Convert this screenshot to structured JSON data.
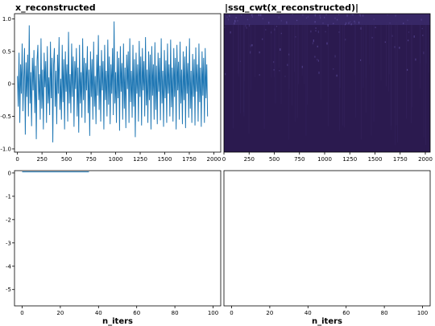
{
  "chart_data": [
    {
      "type": "line",
      "title": "x_reconstructed",
      "xlim": [
        -30,
        2070
      ],
      "ylim": [
        -1.05,
        1.08
      ],
      "xticks": [
        0,
        250,
        500,
        750,
        1000,
        1250,
        1500,
        1750,
        2000
      ],
      "xtick_labels": [
        "0",
        "250",
        "500",
        "750",
        "1000",
        "1250",
        "1500",
        "1750",
        "2000"
      ],
      "yticks": [
        1.0,
        0.5,
        0,
        -0.5,
        -1.0
      ],
      "ytick_labels": [
        "1.0",
        "0.5",
        "0",
        "-0.5",
        "-1.0"
      ],
      "n_points": 2048,
      "y_range_observed": [
        -0.95,
        0.97
      ],
      "series": [
        {
          "color": "#1f77b4",
          "x_step": 8,
          "values": [
            0.12,
            -0.35,
            0.48,
            -0.6,
            0.3,
            -0.15,
            0.62,
            -0.42,
            0.05,
            0.55,
            -0.78,
            0.33,
            -0.2,
            0.45,
            -0.5,
            0.9,
            -0.3,
            0.18,
            -0.65,
            0.4,
            -0.1,
            0.52,
            -0.45,
            0.28,
            -0.85,
            0.36,
            0.6,
            -0.25,
            0.15,
            -0.55,
            0.7,
            -0.38,
            0.22,
            -0.7,
            0.48,
            -0.05,
            0.35,
            -0.6,
            0.58,
            -0.3,
            0.1,
            -0.48,
            0.65,
            -0.22,
            0.4,
            -0.9,
            0.3,
            0.55,
            -0.35,
            0.2,
            -0.62,
            0.45,
            -0.15,
            0.72,
            -0.4,
            0.08,
            -0.55,
            0.6,
            -0.28,
            0.38,
            -0.7,
            0.5,
            -0.12,
            0.3,
            -0.58,
            0.8,
            -0.3,
            0.15,
            -0.45,
            0.62,
            -0.2,
            0.42,
            -0.66,
            0.35,
            -0.08,
            0.55,
            -0.5,
            0.25,
            -0.75,
            0.6,
            -0.3,
            0.18,
            -0.52,
            0.7,
            -0.25,
            0.4,
            -0.6,
            0.32,
            -0.1,
            0.58,
            -0.45,
            0.22,
            -0.8,
            0.5,
            -0.2,
            0.38,
            -0.55,
            0.65,
            -0.35,
            0.12,
            -0.62,
            0.45,
            -0.18,
            0.75,
            -0.4,
            0.28,
            -0.58,
            0.52,
            -0.1,
            0.35,
            -0.7,
            0.6,
            -0.25,
            0.2,
            -0.5,
            0.68,
            -0.32,
            0.42,
            -0.62,
            0.3,
            -0.15,
            0.55,
            -0.48,
            0.96,
            -0.3,
            0.18,
            -0.6,
            0.5,
            -0.22,
            0.4,
            -0.72,
            0.58,
            -0.12,
            0.32,
            -0.55,
            0.62,
            -0.38,
            0.25,
            -0.68,
            0.45,
            -0.08,
            0.5,
            -0.6,
            0.7,
            -0.28,
            0.2,
            -0.52,
            0.6,
            -0.35,
            0.38,
            -0.82,
            0.48,
            -0.15,
            0.3,
            -0.58,
            0.66,
            -0.2,
            0.42,
            -0.64,
            0.55,
            -0.1,
            0.35,
            -0.5,
            0.72,
            -0.33,
            0.22,
            -0.6,
            0.5,
            -0.25,
            0.45,
            -0.7,
            0.58,
            -0.18,
            0.3,
            -0.55,
            0.64,
            -0.4,
            0.28,
            -0.62,
            0.48,
            -0.12,
            0.4,
            -0.56,
            0.7,
            -0.3,
            0.2,
            -0.66,
            0.52,
            -0.22,
            0.36,
            -0.6,
            0.62,
            -0.15,
            0.3,
            -0.5,
            0.68,
            -0.36,
            0.25,
            -0.58,
            0.55,
            -0.2,
            0.4,
            -0.7,
            0.6,
            -0.1,
            0.34,
            -0.55,
            0.65,
            -0.3,
            0.22,
            -0.62,
            0.5,
            -0.25,
            0.42,
            -0.68,
            0.58,
            -0.15,
            0.32,
            -0.52,
            0.7,
            -0.38,
            0.2,
            -0.6,
            0.46,
            -0.2,
            0.38,
            -0.64,
            0.56,
            -0.12,
            0.3,
            -0.58,
            0.62,
            -0.28,
            0.25,
            -0.66,
            0.5,
            -0.18,
            0.4,
            -0.6,
            0.55,
            -0.22,
            0.3,
            -0.5
          ]
        }
      ]
    },
    {
      "type": "heatmap",
      "title": "|ssq_cwt(x_reconstructed)|",
      "xlim": [
        0,
        2048
      ],
      "xticks": [
        0,
        250,
        500,
        750,
        1000,
        1250,
        1500,
        1750,
        2000
      ],
      "xtick_labels": [
        "0",
        "250",
        "500",
        "750",
        "1000",
        "1250",
        "1500",
        "1750",
        "2000"
      ],
      "yticks": [],
      "colors": {
        "background": "#2b1a4f",
        "top_band": "#3b2a6b",
        "speckle": "#5b4a9a"
      }
    },
    {
      "type": "line",
      "title": "",
      "xlabel": "n_iters",
      "xlim": [
        -4,
        104
      ],
      "ylim": [
        -5.7,
        0.1
      ],
      "xticks": [
        0,
        20,
        40,
        60,
        80,
        100
      ],
      "xtick_labels": [
        "0",
        "20",
        "40",
        "60",
        "80",
        "100"
      ],
      "yticks": [
        0,
        -1,
        -2,
        -3,
        -4,
        -5
      ],
      "ytick_labels": [
        "0",
        "-1",
        "-2",
        "-3",
        "-4",
        "-5"
      ],
      "series": [
        {
          "color": "#1f77b4",
          "x": [
            0,
            35
          ],
          "values": [
            0.05,
            0.05
          ]
        }
      ]
    },
    {
      "type": "line",
      "title": "",
      "xlabel": "n_iters",
      "xlim": [
        -4,
        104
      ],
      "xticks": [
        0,
        20,
        40,
        60,
        80,
        100
      ],
      "xtick_labels": [
        "0",
        "20",
        "40",
        "60",
        "80",
        "100"
      ],
      "yticks": [],
      "series": []
    }
  ]
}
